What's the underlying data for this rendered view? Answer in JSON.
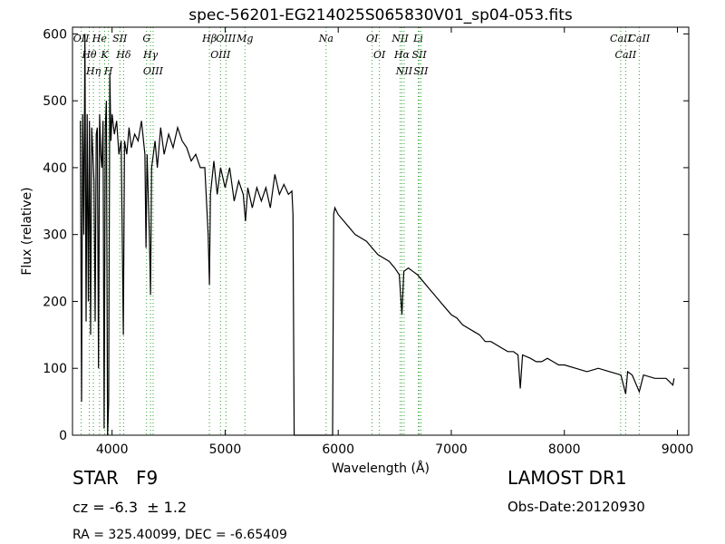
{
  "chart_data": {
    "type": "line",
    "title": "spec-56201-EG214025S065830V01_sp04-053.fits",
    "xlabel": "Wavelength (Å)",
    "ylabel": "Flux (relative)",
    "xlim": [
      3650,
      9100
    ],
    "ylim": [
      0,
      610
    ],
    "xticks": [
      4000,
      5000,
      6000,
      7000,
      8000,
      9000
    ],
    "yticks": [
      0,
      100,
      200,
      300,
      400,
      500,
      600
    ],
    "color": "#000000",
    "line_color": "#2ca02c",
    "x": [
      3720,
      3730,
      3740,
      3750,
      3760,
      3770,
      3780,
      3790,
      3800,
      3810,
      3820,
      3830,
      3840,
      3850,
      3860,
      3870,
      3880,
      3890,
      3900,
      3910,
      3920,
      3930,
      3940,
      3950,
      3960,
      3970,
      3980,
      3990,
      4000,
      4020,
      4040,
      4060,
      4080,
      4100,
      4110,
      4130,
      4150,
      4170,
      4200,
      4230,
      4260,
      4290,
      4300,
      4310,
      4330,
      4340,
      4350,
      4380,
      4400,
      4430,
      4460,
      4500,
      4540,
      4580,
      4620,
      4660,
      4700,
      4740,
      4780,
      4820,
      4850,
      4861,
      4870,
      4900,
      4930,
      4960,
      5000,
      5040,
      5080,
      5120,
      5160,
      5180,
      5200,
      5240,
      5280,
      5320,
      5360,
      5400,
      5440,
      5480,
      5520,
      5560,
      5590,
      5600,
      5610,
      5900,
      5950,
      5960,
      5970,
      6000,
      6050,
      6100,
      6150,
      6200,
      6250,
      6300,
      6350,
      6400,
      6450,
      6500,
      6540,
      6563,
      6580,
      6620,
      6660,
      6700,
      6750,
      6800,
      6850,
      6900,
      6950,
      7000,
      7050,
      7100,
      7150,
      7200,
      7250,
      7300,
      7350,
      7400,
      7450,
      7500,
      7550,
      7590,
      7610,
      7630,
      7700,
      7750,
      7800,
      7850,
      7900,
      7950,
      8000,
      8100,
      8200,
      8300,
      8400,
      8500,
      8542,
      8560,
      8600,
      8662,
      8700,
      8800,
      8900,
      8960,
      8970
    ],
    "values": [
      470,
      50,
      480,
      300,
      600,
      170,
      480,
      200,
      470,
      150,
      460,
      420,
      380,
      170,
      450,
      460,
      100,
      480,
      420,
      400,
      470,
      10,
      460,
      500,
      0,
      50,
      540,
      440,
      480,
      450,
      470,
      420,
      440,
      150,
      440,
      420,
      460,
      430,
      450,
      440,
      470,
      420,
      280,
      420,
      300,
      210,
      400,
      440,
      400,
      460,
      420,
      450,
      430,
      460,
      440,
      430,
      410,
      420,
      400,
      400,
      300,
      225,
      360,
      410,
      360,
      400,
      370,
      400,
      350,
      380,
      360,
      320,
      370,
      340,
      370,
      350,
      370,
      340,
      390,
      360,
      375,
      360,
      365,
      330,
      0,
      0,
      0,
      330,
      340,
      330,
      320,
      310,
      300,
      295,
      290,
      280,
      270,
      265,
      260,
      250,
      240,
      180,
      245,
      250,
      245,
      240,
      230,
      220,
      210,
      200,
      190,
      180,
      175,
      165,
      160,
      155,
      150,
      140,
      140,
      135,
      130,
      125,
      125,
      120,
      70,
      120,
      115,
      110,
      110,
      115,
      110,
      105,
      105,
      100,
      95,
      100,
      95,
      90,
      62,
      95,
      90,
      65,
      90,
      85,
      85,
      75,
      85
    ],
    "lines": [
      {
        "label": "OII",
        "wavelength": 3727
      },
      {
        "label": "Hθ",
        "wavelength": 3798
      },
      {
        "label": "Hη",
        "wavelength": 3835
      },
      {
        "label": "He",
        "wavelength": 3889
      },
      {
        "label": "K",
        "wavelength": 3934
      },
      {
        "label": "H",
        "wavelength": 3968
      },
      {
        "label": "SII",
        "wavelength": 4069
      },
      {
        "label": "Hδ",
        "wavelength": 4102
      },
      {
        "label": "G",
        "wavelength": 4305
      },
      {
        "label": "Hγ",
        "wavelength": 4340
      },
      {
        "label": "OIII",
        "wavelength": 4363
      },
      {
        "label": "Hβ",
        "wavelength": 4861
      },
      {
        "label": "OIII",
        "wavelength": 4959
      },
      {
        "label": "OIII",
        "wavelength": 5007
      },
      {
        "label": "Mg",
        "wavelength": 5175
      },
      {
        "label": "Na",
        "wavelength": 5893
      },
      {
        "label": "OI",
        "wavelength": 6300
      },
      {
        "label": "OI",
        "wavelength": 6364
      },
      {
        "label": "NII",
        "wavelength": 6548
      },
      {
        "label": "Hα",
        "wavelength": 6563
      },
      {
        "label": "NII",
        "wavelength": 6583
      },
      {
        "label": "Li",
        "wavelength": 6708
      },
      {
        "label": "SII",
        "wavelength": 6717
      },
      {
        "label": "SII",
        "wavelength": 6731
      },
      {
        "label": "CaII",
        "wavelength": 8498
      },
      {
        "label": "CaII",
        "wavelength": 8542
      },
      {
        "label": "CaII",
        "wavelength": 8662
      }
    ],
    "object_class": "STAR   F9",
    "redshift": "cz = -6.3  ± 1.2",
    "coordinates": "RA = 325.40099, DEC = -6.65409",
    "survey": "LAMOST DR1",
    "obs_date": "Obs-Date:20120930"
  }
}
